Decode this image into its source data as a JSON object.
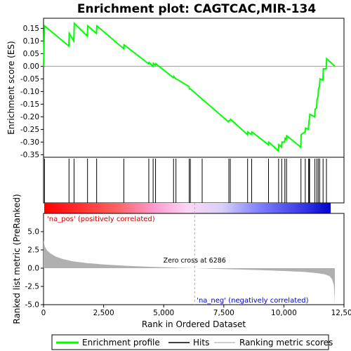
{
  "chart_data": {
    "type": "line",
    "title": "Enrichment plot: CAGTCAC,MIR-134",
    "colors": {
      "profile": "#00ff00",
      "hits": "#000000",
      "metric": "#b0b0b0",
      "zero_line": "#aaaaaa",
      "pos_label": "#cc0000",
      "neg_label": "#0000cc"
    },
    "top_panel": {
      "ylabel": "Enrichment score (ES)",
      "ylim": [
        -0.36,
        0.19
      ],
      "yticks": [
        "0.15",
        "0.10",
        "0.05",
        "0.00",
        "-0.05",
        "-0.10",
        "-0.15",
        "-0.20",
        "-0.25",
        "-0.30",
        "-0.35"
      ],
      "ytick_values": [
        0.15,
        0.1,
        0.05,
        0.0,
        -0.05,
        -0.1,
        -0.15,
        -0.2,
        -0.25,
        -0.3,
        -0.35
      ],
      "profile": [
        [
          0,
          0.0
        ],
        [
          40,
          0.16
        ],
        [
          1050,
          0.08
        ],
        [
          1070,
          0.13
        ],
        [
          1260,
          0.1
        ],
        [
          1280,
          0.17
        ],
        [
          1820,
          0.12
        ],
        [
          1840,
          0.16
        ],
        [
          2200,
          0.13
        ],
        [
          2220,
          0.16
        ],
        [
          3330,
          0.07
        ],
        [
          3350,
          0.085
        ],
        [
          4370,
          0.01
        ],
        [
          4390,
          0.015
        ],
        [
          4550,
          0.0
        ],
        [
          4570,
          0.012
        ],
        [
          4650,
          0.005
        ],
        [
          4670,
          0.01
        ],
        [
          5400,
          -0.045
        ],
        [
          5420,
          -0.04
        ],
        [
          5500,
          -0.05
        ],
        [
          5520,
          -0.05
        ],
        [
          6050,
          -0.08
        ],
        [
          6070,
          -0.09
        ],
        [
          6120,
          -0.09
        ],
        [
          6600,
          -0.13
        ],
        [
          7700,
          -0.22
        ],
        [
          7720,
          -0.215
        ],
        [
          7760,
          -0.215
        ],
        [
          7780,
          -0.21
        ],
        [
          8480,
          -0.27
        ],
        [
          8500,
          -0.26
        ],
        [
          8650,
          -0.27
        ],
        [
          8670,
          -0.26
        ],
        [
          9350,
          -0.31
        ],
        [
          9370,
          -0.3
        ],
        [
          9770,
          -0.335
        ],
        [
          9790,
          -0.31
        ],
        [
          9900,
          -0.32
        ],
        [
          9920,
          -0.3
        ],
        [
          10030,
          -0.3
        ],
        [
          10050,
          -0.285
        ],
        [
          10100,
          -0.29
        ],
        [
          10120,
          -0.275
        ],
        [
          10700,
          -0.32
        ],
        [
          10720,
          -0.27
        ],
        [
          10880,
          -0.26
        ],
        [
          10900,
          -0.245
        ],
        [
          11020,
          -0.25
        ],
        [
          11040,
          -0.22
        ],
        [
          11060,
          -0.21
        ],
        [
          11080,
          -0.19
        ],
        [
          11280,
          -0.2
        ],
        [
          11300,
          -0.17
        ],
        [
          11360,
          -0.165
        ],
        [
          11380,
          -0.13
        ],
        [
          11420,
          -0.12
        ],
        [
          11440,
          -0.09
        ],
        [
          11480,
          -0.08
        ],
        [
          11500,
          -0.05
        ],
        [
          11620,
          -0.055
        ],
        [
          11640,
          -0.01
        ],
        [
          11760,
          -0.01
        ],
        [
          11780,
          0.03
        ],
        [
          12120,
          0.0
        ]
      ],
      "hits": [
        40,
        1060,
        1270,
        1830,
        2210,
        3340,
        4380,
        4560,
        4660,
        5410,
        5510,
        6060,
        6110,
        6600,
        7710,
        7770,
        8490,
        8660,
        9360,
        9780,
        9910,
        10040,
        10110,
        10710,
        10890,
        11030,
        11050,
        11070,
        11290,
        11370,
        11430,
        11490,
        11630,
        11770
      ]
    },
    "bottom_panel": {
      "ylabel": "Ranked list metric (PreRanked)",
      "xlabel": "Rank in Ordered Dataset",
      "ylim": [
        -5,
        7.5
      ],
      "yticks": [
        "5.0",
        "2.5",
        "0.0",
        "-2.5",
        "-5.0"
      ],
      "ytick_values": [
        5.0,
        2.5,
        0.0,
        -2.5,
        -5.0
      ],
      "xlim": [
        0,
        12500
      ],
      "xticks": [
        "0",
        "2,500",
        "5,000",
        "7,500",
        "10,000",
        "12,500"
      ],
      "xtick_values": [
        0,
        2500,
        5000,
        7500,
        10000,
        12500
      ],
      "metric": [
        [
          0,
          3.8
        ],
        [
          50,
          3.0
        ],
        [
          150,
          2.4
        ],
        [
          300,
          2.0
        ],
        [
          500,
          1.6
        ],
        [
          800,
          1.25
        ],
        [
          1200,
          0.95
        ],
        [
          1800,
          0.7
        ],
        [
          2500,
          0.5
        ],
        [
          3500,
          0.32
        ],
        [
          4500,
          0.18
        ],
        [
          5500,
          0.07
        ],
        [
          6286,
          0.0
        ],
        [
          7000,
          -0.07
        ],
        [
          8000,
          -0.16
        ],
        [
          9000,
          -0.27
        ],
        [
          10000,
          -0.38
        ],
        [
          10800,
          -0.5
        ],
        [
          11300,
          -0.65
        ],
        [
          11700,
          -0.85
        ],
        [
          11900,
          -1.1
        ],
        [
          12000,
          -1.5
        ],
        [
          12080,
          -2.3
        ],
        [
          12120,
          -4.7
        ]
      ],
      "zero_cross_rank": 6286,
      "zero_cross_label": "Zero cross at 6286",
      "pos_label": "'na_pos' (positively correlated)",
      "neg_label": "'na_neg' (negatively correlated)",
      "n_genes": 12120
    },
    "legend": {
      "position": "bottom",
      "items": [
        "Enrichment profile",
        "Hits",
        "Ranking metric scores"
      ]
    }
  }
}
